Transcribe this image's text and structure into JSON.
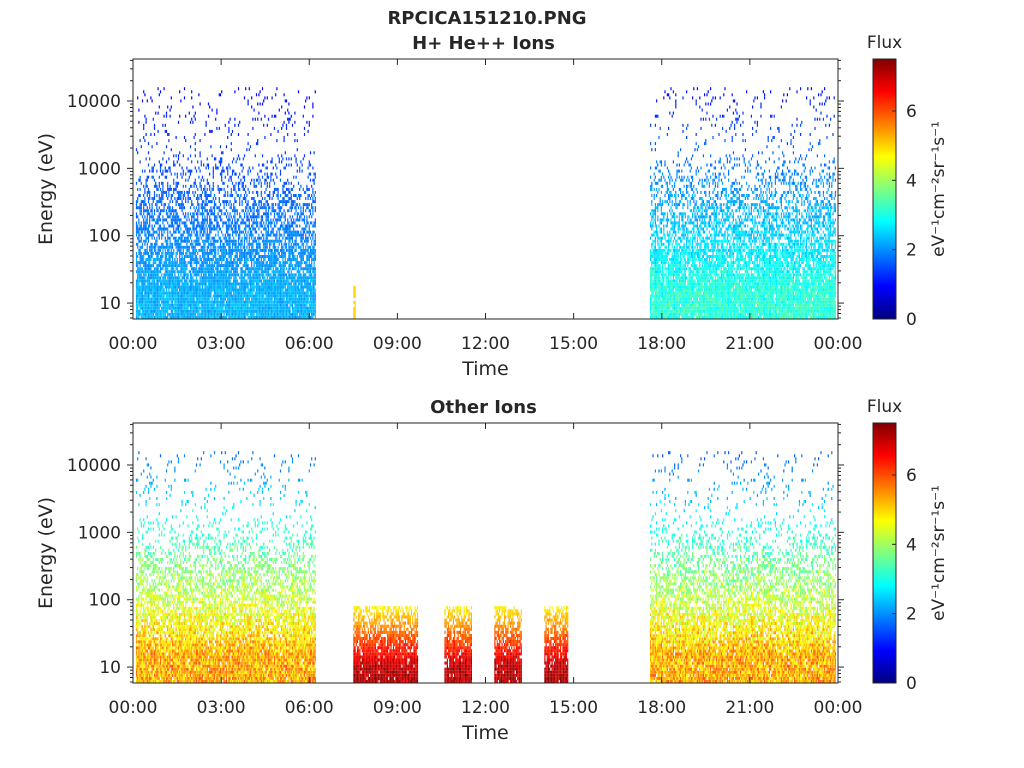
{
  "figure": {
    "title": "RPCICA151210.PNG",
    "colormap": [
      "#00007f",
      "#0000ff",
      "#007fff",
      "#00ffff",
      "#7fff7f",
      "#ffff00",
      "#ff7f00",
      "#ff0000",
      "#7f0000"
    ]
  },
  "chart_data": [
    {
      "type": "heatmap",
      "title": "H+ He++ Ions",
      "xlabel": "Time",
      "ylabel": "Energy (eV)",
      "xticks": [
        "00:00",
        "03:00",
        "06:00",
        "09:00",
        "12:00",
        "15:00",
        "18:00",
        "21:00",
        "00:00"
      ],
      "xlim_hours": [
        0,
        24
      ],
      "yscale": "log",
      "ylim": [
        5.8,
        42000
      ],
      "yticks": [
        10,
        100,
        1000,
        10000
      ],
      "ytick_labels": [
        "10",
        "100",
        "1000",
        "10000"
      ],
      "colorbar": {
        "label": "Flux",
        "unit": "eV⁻¹cm⁻²sr⁻¹s⁻¹",
        "range": [
          0,
          7.5
        ],
        "ticks": [
          0,
          2,
          4,
          6
        ]
      },
      "data_intervals": [
        {
          "start_hour": 0.1,
          "end_hour": 6.2,
          "energy_range_eV": [
            5.8,
            16000
          ],
          "flux_range": [
            0.5,
            2.5
          ],
          "peak_energy_eV": 15
        },
        {
          "start_hour": 7.5,
          "end_hour": 7.55,
          "energy_range_eV": [
            5.8,
            18
          ],
          "flux_range": [
            5,
            5
          ]
        },
        {
          "start_hour": 17.6,
          "end_hour": 23.9,
          "energy_range_eV": [
            5.8,
            16000
          ],
          "flux_range": [
            0.3,
            3.5
          ],
          "peak_energy_eV": 15
        }
      ]
    },
    {
      "type": "heatmap",
      "title": "Other Ions",
      "xlabel": "Time",
      "ylabel": "Energy (eV)",
      "xticks": [
        "00:00",
        "03:00",
        "06:00",
        "09:00",
        "12:00",
        "15:00",
        "18:00",
        "21:00",
        "00:00"
      ],
      "xlim_hours": [
        0,
        24
      ],
      "yscale": "log",
      "ylim": [
        5.8,
        42000
      ],
      "yticks": [
        10,
        100,
        1000,
        10000
      ],
      "ytick_labels": [
        "10",
        "100",
        "1000",
        "10000"
      ],
      "colorbar": {
        "label": "Flux",
        "unit": "eV⁻¹cm⁻²sr⁻¹s⁻¹",
        "range": [
          0,
          7.5
        ],
        "ticks": [
          0,
          2,
          4,
          6
        ]
      },
      "data_intervals": [
        {
          "start_hour": 0.1,
          "end_hour": 6.2,
          "energy_range_eV": [
            5.8,
            16000
          ],
          "flux_range": [
            0.5,
            6
          ],
          "peak_energy_eV": 15
        },
        {
          "start_hour": 7.5,
          "end_hour": 9.7,
          "energy_range_eV": [
            5.8,
            80
          ],
          "flux_range": [
            4,
            7.5
          ],
          "peak_energy_eV": 10
        },
        {
          "start_hour": 10.6,
          "end_hour": 11.5,
          "energy_range_eV": [
            5.8,
            80
          ],
          "flux_range": [
            4,
            7.5
          ],
          "peak_energy_eV": 10
        },
        {
          "start_hour": 12.3,
          "end_hour": 13.2,
          "energy_range_eV": [
            5.8,
            80
          ],
          "flux_range": [
            4,
            7.5
          ],
          "peak_energy_eV": 10
        },
        {
          "start_hour": 14.0,
          "end_hour": 14.8,
          "energy_range_eV": [
            5.8,
            80
          ],
          "flux_range": [
            4,
            7.5
          ],
          "peak_energy_eV": 10
        },
        {
          "start_hour": 17.6,
          "end_hour": 23.9,
          "energy_range_eV": [
            5.8,
            16000
          ],
          "flux_range": [
            0.3,
            6
          ],
          "peak_energy_eV": 15
        }
      ]
    }
  ]
}
